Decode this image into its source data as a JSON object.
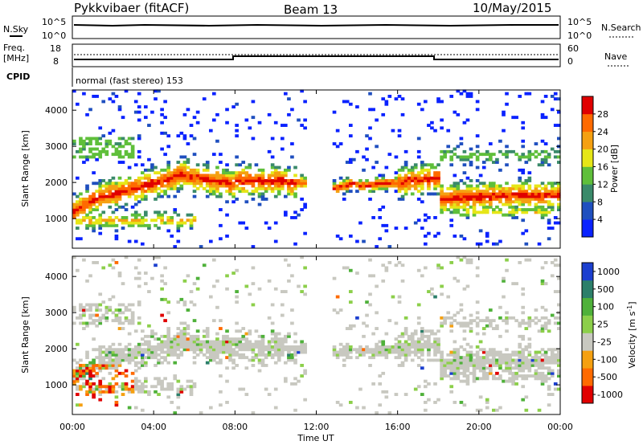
{
  "header": {
    "station": "Pykkvibaer (fitACF)",
    "beam": "Beam 13",
    "date": "10/May/2015"
  },
  "sky_panel": {
    "left_label": "N.Sky",
    "left_ticks": [
      "10^5",
      "10^0"
    ],
    "right_label": "N.Search",
    "right_ticks": [
      "10^5",
      "10^0"
    ]
  },
  "freq_panel": {
    "left_label_1": "Freq.",
    "left_label_2": "[MHz]",
    "left_ticks": [
      "18",
      "8"
    ],
    "right_label": "Nave",
    "right_ticks": [
      "60",
      "0"
    ]
  },
  "cpid": {
    "label": "CPID",
    "text": "normal (fast stereo) 153"
  },
  "x_axis": {
    "label": "Time UT",
    "ticks": [
      "00:00",
      "04:00",
      "08:00",
      "12:00",
      "16:00",
      "20:00",
      "00:00"
    ]
  },
  "chart_data": [
    {
      "type": "heatmap",
      "name": "power",
      "ylabel": "Slant Range [km]",
      "y_ticks": [
        1000,
        2000,
        3000,
        4000
      ],
      "ylim": [
        180,
        4560
      ],
      "xlim_hours": [
        0,
        24
      ],
      "colorbar_label": "Power [dB]",
      "colorbar_ticks": [
        4,
        8,
        12,
        16,
        20,
        24,
        28
      ],
      "colorbar_range": [
        0,
        32
      ],
      "colors": [
        "#0a22ff",
        "#1f4fbf",
        "#3a8a6a",
        "#5fbf3a",
        "#e6e617",
        "#f5a011",
        "#ff6a00",
        "#e00000"
      ]
    },
    {
      "type": "heatmap",
      "name": "velocity",
      "ylabel": "Slant Range [km]",
      "y_ticks": [
        1000,
        2000,
        3000,
        4000
      ],
      "ylim": [
        180,
        4560
      ],
      "xlim_hours": [
        0,
        24
      ],
      "colorbar_label": "Velocity [m s^-1]",
      "colorbar_ticks": [
        "1000",
        "500",
        "100",
        "25",
        "-25",
        "-100",
        "-500",
        "-1000"
      ],
      "colors": [
        "#1c3fcf",
        "#2c7f6a",
        "#4fb13a",
        "#8ccf4a",
        "#c8c8c0",
        "#f5a011",
        "#ff6a00",
        "#e00000"
      ]
    }
  ]
}
